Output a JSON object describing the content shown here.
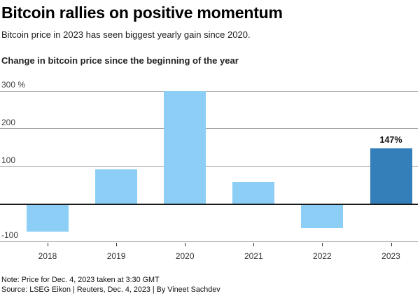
{
  "header": {
    "title": "Bitcoin rallies on positive momentum",
    "subtitle": "Bitcoin price in 2023 has seen biggest yearly gain since 2020.",
    "chart_heading": "Change in bitcoin price since the beginning of the year"
  },
  "chart_data": {
    "type": "bar",
    "title": "Change in bitcoin price since the beginning of the year",
    "categories": [
      "2018",
      "2019",
      "2020",
      "2021",
      "2022",
      "2023"
    ],
    "values": [
      -74,
      92,
      300,
      58,
      -64,
      147
    ],
    "unit": "%",
    "ylabel": "",
    "xlabel": "",
    "ylim": [
      -100,
      300
    ],
    "yticks": [
      {
        "value": 300,
        "label": "300 %"
      },
      {
        "value": 200,
        "label": "200"
      },
      {
        "value": 100,
        "label": "100"
      },
      {
        "value": -100,
        "label": "-100"
      }
    ],
    "zero_baseline": true,
    "grid": true,
    "legend": "none",
    "highlighted_category": "2023",
    "value_labels": [
      "",
      "",
      "",
      "",
      "",
      "147%"
    ],
    "colors": {
      "bar": "#8CCEF5",
      "bar_highlight": "#347EBA",
      "gridline": "#9b9b9b",
      "zero_line": "#1a1a1a"
    }
  },
  "footer": {
    "note": "Note: Price for Dec. 4, 2023 taken at 3:30 GMT",
    "source": "Source: LSEG Eikon | Reuters, Dec. 4, 2023 | By Vineet Sachdev"
  }
}
